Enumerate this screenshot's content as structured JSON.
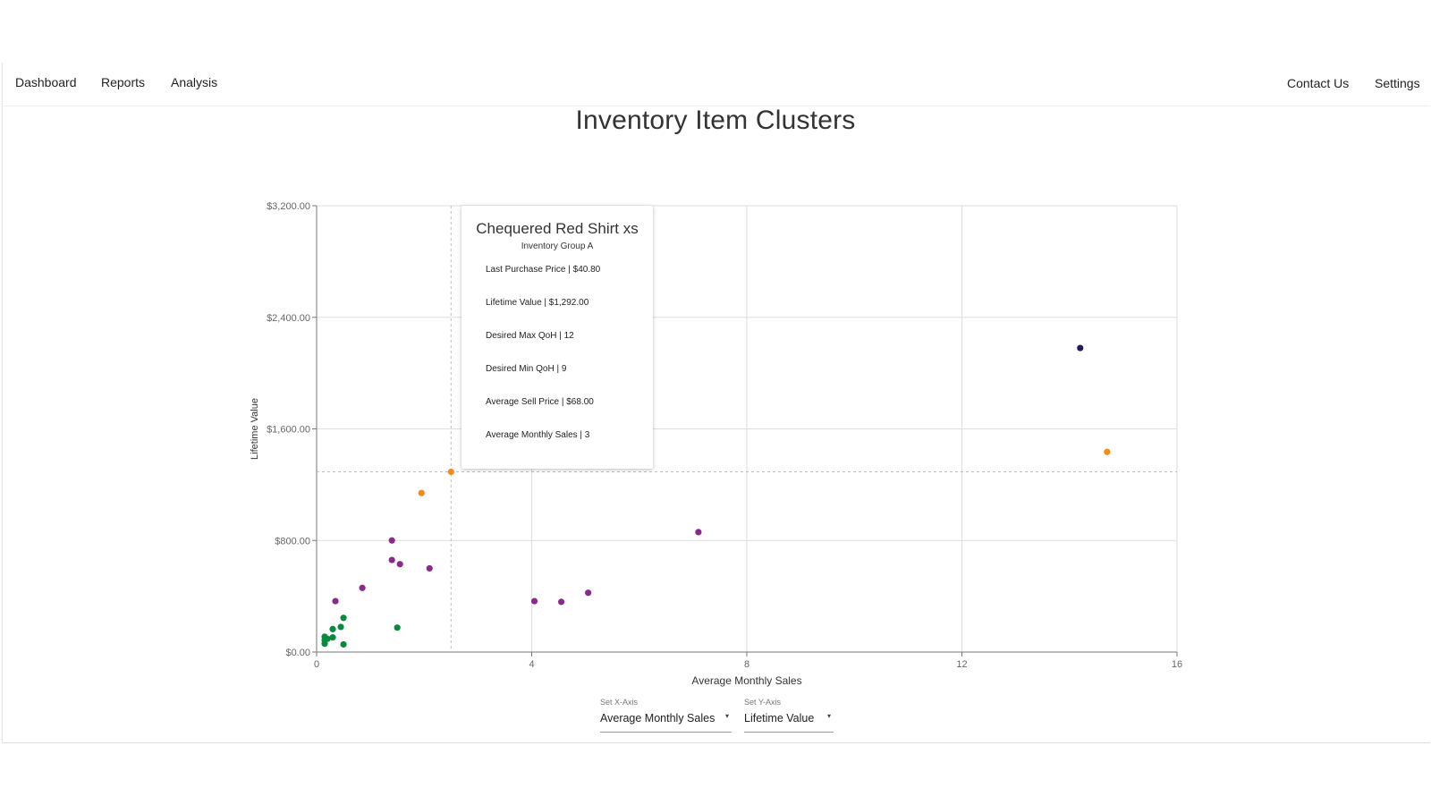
{
  "nav": {
    "left": [
      "Dashboard",
      "Reports",
      "Analysis"
    ],
    "right": [
      "Contact Us",
      "Settings"
    ]
  },
  "page_title": "Inventory Item Clusters",
  "chart_data": {
    "type": "scatter",
    "xlabel": "Average Monthly Sales",
    "ylabel": "Lifetime Value",
    "xlim": [
      0,
      16
    ],
    "ylim": [
      0,
      3200
    ],
    "x_ticks": [
      "0",
      "4",
      "8",
      "12",
      "16"
    ],
    "y_ticks": [
      "$0.00",
      "$800.00",
      "$1,600.00",
      "$2,400.00",
      "$3,200.00"
    ],
    "grid": true,
    "series": [
      {
        "color": "#0a8a3c",
        "points": [
          [
            0.15,
            60
          ],
          [
            0.15,
            85
          ],
          [
            0.15,
            110
          ],
          [
            0.2,
            95
          ],
          [
            0.3,
            105
          ],
          [
            0.3,
            165
          ],
          [
            0.45,
            180
          ],
          [
            0.5,
            245
          ],
          [
            0.5,
            55
          ],
          [
            1.5,
            175
          ]
        ]
      },
      {
        "color": "#8b2a8b",
        "points": [
          [
            0.35,
            365
          ],
          [
            0.85,
            460
          ],
          [
            1.4,
            800
          ],
          [
            1.4,
            660
          ],
          [
            1.55,
            630
          ],
          [
            2.1,
            600
          ],
          [
            4.05,
            365
          ],
          [
            4.55,
            360
          ],
          [
            5.05,
            425
          ],
          [
            7.1,
            860
          ]
        ]
      },
      {
        "color": "#f08c1c",
        "points": [
          [
            1.95,
            1140
          ],
          [
            2.5,
            1292
          ],
          [
            14.7,
            1435
          ]
        ]
      },
      {
        "color": "#241a55",
        "points": [
          [
            14.2,
            2180
          ]
        ]
      }
    ],
    "highlight": {
      "x": 2.5,
      "y": 1292
    }
  },
  "tooltip": {
    "title": "Chequered Red Shirt xs",
    "subtitle": "Inventory Group A",
    "rows": [
      "Last Purchase Price | $40.80",
      "Lifetime Value | $1,292.00",
      "Desired Max QoH | 12",
      "Desired Min QoH | 9",
      "Average Sell Price | $68.00",
      "Average Monthly Sales | 3"
    ]
  },
  "controls": {
    "x_axis_label": "Set X-Axis",
    "x_axis_value": "Average Monthly Sales",
    "y_axis_label": "Set Y-Axis",
    "y_axis_value": "Lifetime Value",
    "caret": "▾"
  },
  "colors": {
    "grid": "#dedede",
    "axis": "#777777",
    "crosshair": "#bdbdbd"
  }
}
